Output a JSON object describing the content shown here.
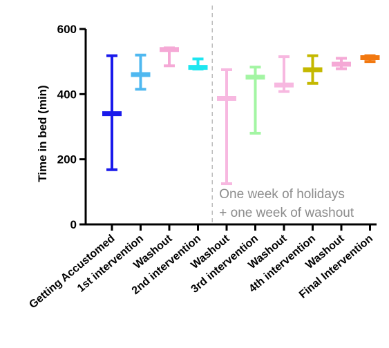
{
  "chart_data": {
    "type": "error-bar",
    "title": "",
    "xlabel": "",
    "ylabel": "Time in bed (min)",
    "ylim": [
      0,
      600
    ],
    "yticks": [
      0,
      200,
      400,
      600
    ],
    "grid": false,
    "categories": [
      "Getting Accustomed",
      "1st intervention",
      "Washout",
      "2nd intervention",
      "Washout",
      "3rd intervention",
      "Washout",
      "4th intervention",
      "Washout",
      "Final Intervention"
    ],
    "series": [
      {
        "median": [
          340,
          460,
          537,
          482,
          387,
          452,
          428,
          475,
          492,
          512
        ],
        "min": [
          168,
          415,
          487,
          477,
          125,
          280,
          408,
          433,
          478,
          500
        ],
        "max": [
          518,
          520,
          542,
          508,
          475,
          483,
          515,
          518,
          510,
          518
        ],
        "colors": [
          "#1a1aeb",
          "#4fb8f0",
          "#f5a9d6",
          "#1ee6f0",
          "#f7b8e0",
          "#a3f5a3",
          "#f7b8e0",
          "#c4b800",
          "#f5a9d6",
          "#f2780f"
        ]
      }
    ],
    "annotations": [
      {
        "lines": [
          "One week of holidays",
          "+ one week of washout"
        ]
      }
    ],
    "divider_color": "#bdbdbd"
  }
}
